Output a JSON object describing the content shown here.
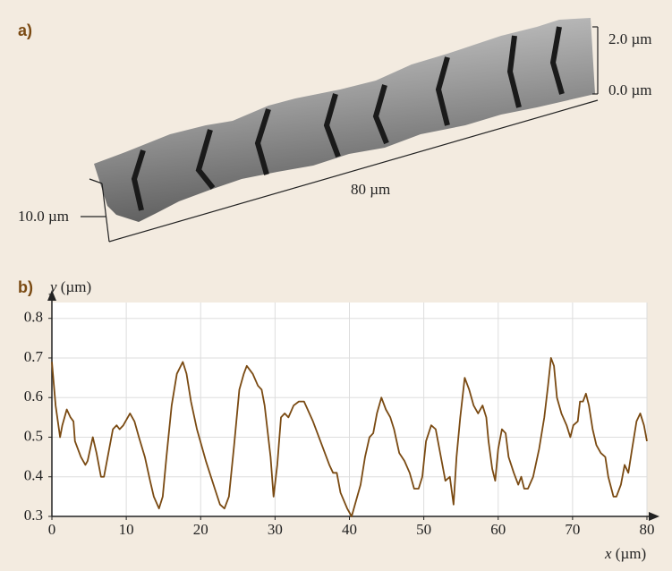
{
  "panel_a": {
    "label": "a)",
    "z_top": "2.0 µm",
    "z_bottom": "0.0 µm",
    "length": "80 µm",
    "width": "10.0 µm"
  },
  "chart_data": {
    "type": "line",
    "panel_label": "b)",
    "y_label": {
      "symbol": "y",
      "unit": "(µm)"
    },
    "x_label": {
      "symbol": "x",
      "unit": "(µm)"
    },
    "x": [
      0,
      0.5,
      1.1,
      1.4,
      2.0,
      2.5,
      2.9,
      3.1,
      3.9,
      4.5,
      4.8,
      5.5,
      6.0,
      6.6,
      7.0,
      7.5,
      8.2,
      8.7,
      9.1,
      9.6,
      10.5,
      11.1,
      11.7,
      12.5,
      13.2,
      13.7,
      14.4,
      14.9,
      15.4,
      16.1,
      16.8,
      17.6,
      18.1,
      18.7,
      19.5,
      20.7,
      21.9,
      22.6,
      23.2,
      23.8,
      24.5,
      25.2,
      25.8,
      26.2,
      27.0,
      27.7,
      28.2,
      28.6,
      29.4,
      29.8,
      30.3,
      30.8,
      31.3,
      31.8,
      32.5,
      33.2,
      33.9,
      35.1,
      36.3,
      37.3,
      37.8,
      38.3,
      38.8,
      39.7,
      40.3,
      40.9,
      41.5,
      42.1,
      42.7,
      43.2,
      43.7,
      44.3,
      44.9,
      45.5,
      46.0,
      46.7,
      47.4,
      48.1,
      48.7,
      49.3,
      49.8,
      50.3,
      51.0,
      51.6,
      52.1,
      52.6,
      52.9,
      53.5,
      54.0,
      54.4,
      54.9,
      55.5,
      56.1,
      56.7,
      57.3,
      57.9,
      58.4,
      58.7,
      59.2,
      59.6,
      60.0,
      60.5,
      61.0,
      61.4,
      62.1,
      62.7,
      63.1,
      63.5,
      64.0,
      64.7,
      65.5,
      66.2,
      66.7,
      67.1,
      67.5,
      67.9,
      68.5,
      69.2,
      69.7,
      70.1,
      70.7,
      71.0,
      71.4,
      71.8,
      72.2,
      72.7,
      73.2,
      73.8,
      74.4,
      74.8,
      75.5,
      75.9,
      76.5,
      77.0,
      77.5,
      78.0,
      78.6,
      79.1,
      79.6,
      80.0
    ],
    "series": [
      {
        "color": "#7a4a12",
        "values": [
          0.69,
          0.58,
          0.5,
          0.53,
          0.57,
          0.55,
          0.54,
          0.49,
          0.45,
          0.43,
          0.44,
          0.5,
          0.46,
          0.4,
          0.4,
          0.45,
          0.52,
          0.53,
          0.52,
          0.53,
          0.56,
          0.54,
          0.5,
          0.45,
          0.39,
          0.35,
          0.32,
          0.35,
          0.45,
          0.58,
          0.66,
          0.69,
          0.66,
          0.59,
          0.52,
          0.44,
          0.37,
          0.33,
          0.32,
          0.35,
          0.48,
          0.62,
          0.66,
          0.68,
          0.66,
          0.63,
          0.62,
          0.58,
          0.45,
          0.35,
          0.43,
          0.55,
          0.56,
          0.55,
          0.58,
          0.59,
          0.59,
          0.54,
          0.48,
          0.43,
          0.41,
          0.41,
          0.36,
          0.32,
          0.3,
          0.34,
          0.38,
          0.45,
          0.5,
          0.51,
          0.56,
          0.6,
          0.57,
          0.55,
          0.52,
          0.46,
          0.44,
          0.41,
          0.37,
          0.37,
          0.4,
          0.49,
          0.53,
          0.52,
          0.47,
          0.42,
          0.39,
          0.4,
          0.33,
          0.45,
          0.55,
          0.65,
          0.62,
          0.58,
          0.56,
          0.58,
          0.55,
          0.49,
          0.42,
          0.39,
          0.47,
          0.52,
          0.51,
          0.45,
          0.41,
          0.38,
          0.4,
          0.37,
          0.37,
          0.4,
          0.47,
          0.55,
          0.63,
          0.7,
          0.68,
          0.6,
          0.56,
          0.53,
          0.5,
          0.53,
          0.54,
          0.59,
          0.59,
          0.61,
          0.58,
          0.52,
          0.48,
          0.46,
          0.45,
          0.4,
          0.35,
          0.35,
          0.38,
          0.43,
          0.41,
          0.47,
          0.54,
          0.56,
          0.53,
          0.49
        ]
      }
    ],
    "xlim": [
      0,
      80
    ],
    "xticks": [
      0,
      10,
      20,
      30,
      40,
      50,
      60,
      70,
      80
    ],
    "ylim": [
      0.3,
      0.84
    ],
    "yticks": [
      0.3,
      0.4,
      0.5,
      0.6,
      0.7,
      0.8
    ],
    "grid": true
  }
}
